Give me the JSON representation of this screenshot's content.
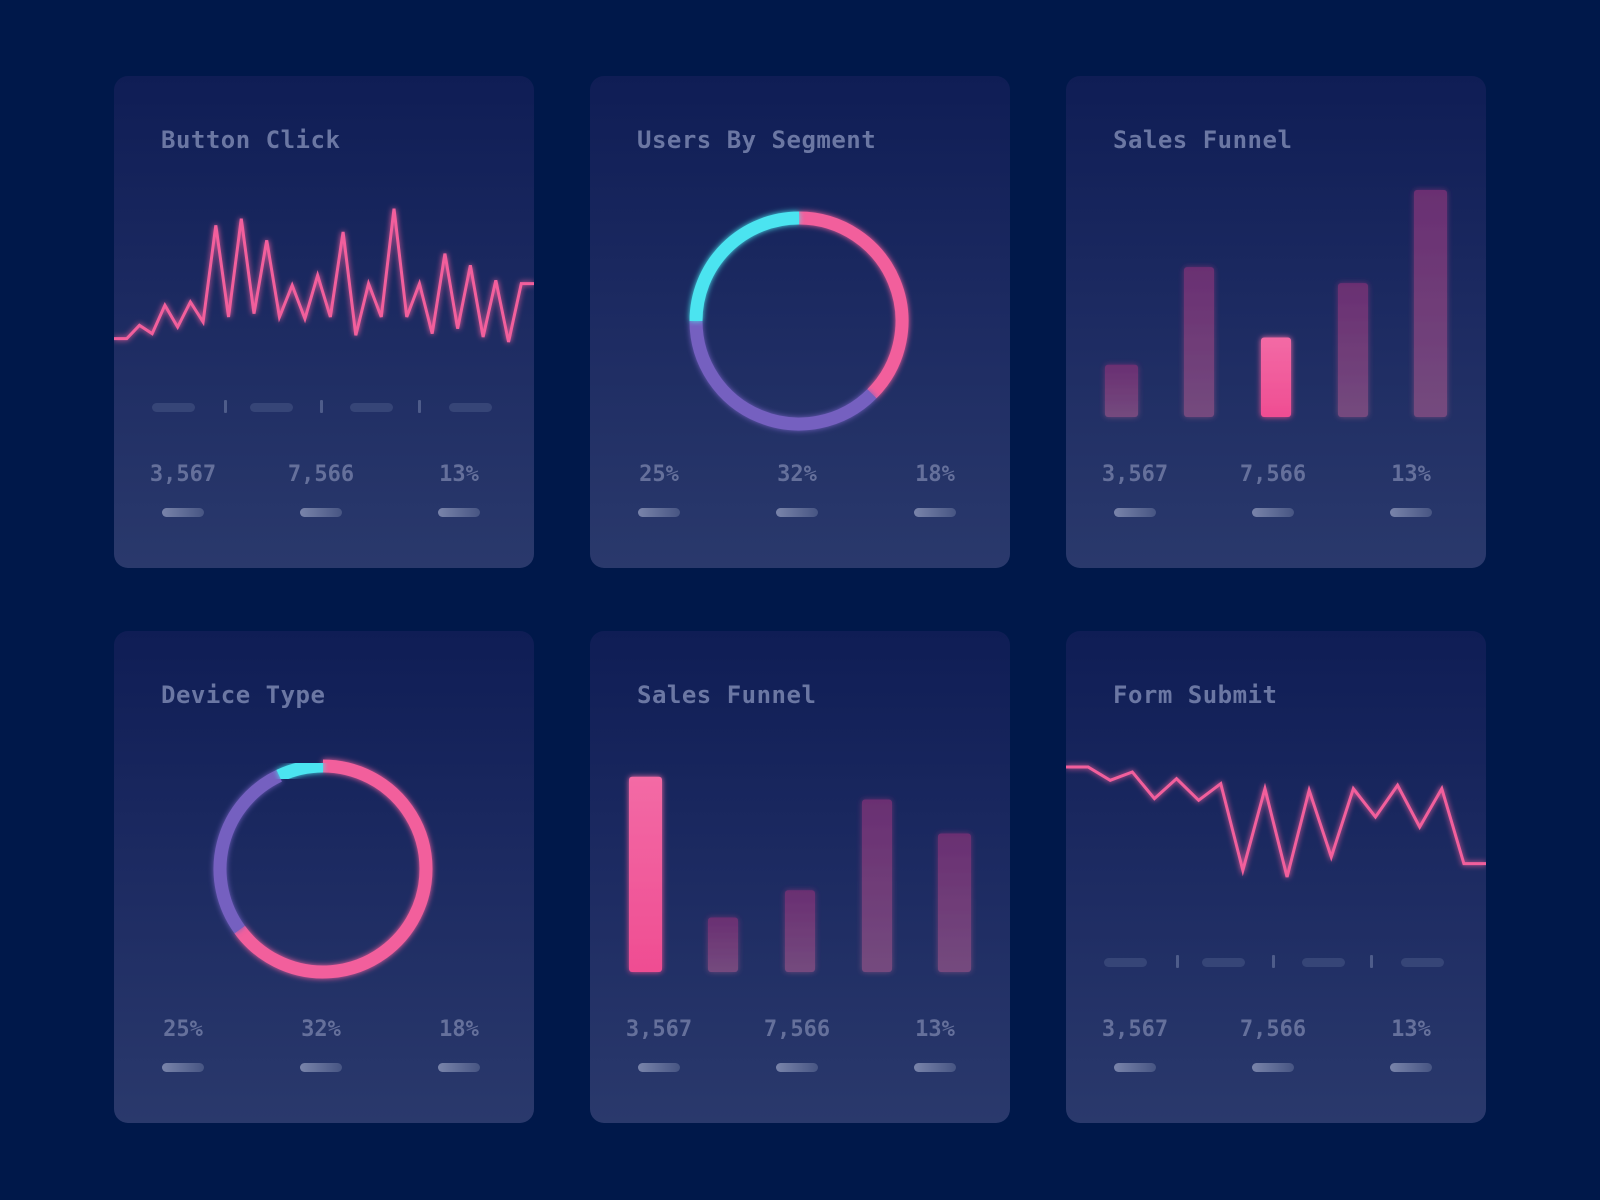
{
  "colors": {
    "background": "#00184a",
    "accent_pink": "#f25f9c",
    "bar_muted": "#6c3a78",
    "cyan": "#4ce4f0",
    "purple": "#7560c0",
    "text": "#6b77a3"
  },
  "cards": [
    {
      "title": "Button Click",
      "stats": [
        "3,567",
        "7,566",
        "13%"
      ]
    },
    {
      "title": "Users By Segment",
      "stats": [
        "25%",
        "32%",
        "18%"
      ]
    },
    {
      "title": "Sales Funnel",
      "stats": [
        "3,567",
        "7,566",
        "13%"
      ]
    },
    {
      "title": "Device Type",
      "stats": [
        "25%",
        "32%",
        "18%"
      ]
    },
    {
      "title": "Sales Funnel",
      "stats": [
        "3,567",
        "7,566",
        "13%"
      ]
    },
    {
      "title": "Form Submit",
      "stats": [
        "3,567",
        "7,566",
        "13%"
      ]
    }
  ],
  "chart_data": [
    {
      "type": "line",
      "card": 0,
      "values": [
        14,
        14,
        22,
        17,
        34,
        21,
        36,
        24,
        82,
        27,
        86,
        29,
        73,
        27,
        46,
        26,
        52,
        27,
        78,
        16,
        47,
        27,
        92,
        27,
        47,
        17,
        65,
        20,
        58,
        15,
        49,
        12,
        47,
        47
      ]
    },
    {
      "type": "pie",
      "variant": "donut",
      "card": 1,
      "slices": [
        {
          "share": 37.5,
          "color": "#f25f9c"
        },
        {
          "share": 37.5,
          "color": "#7560c0"
        },
        {
          "share": 25,
          "color": "#4ce4f0"
        }
      ]
    },
    {
      "type": "bar",
      "card": 2,
      "values": [
        23,
        66,
        35,
        59,
        100
      ],
      "highlighted_index": 2
    },
    {
      "type": "pie",
      "variant": "donut",
      "card": 3,
      "slices": [
        {
          "share": 65,
          "color": "#f25f9c"
        },
        {
          "share": 28,
          "color": "#7560c0"
        },
        {
          "share": 7,
          "color": "#4ce4f0"
        }
      ]
    },
    {
      "type": "bar",
      "card": 4,
      "values": [
        86,
        24,
        36,
        76,
        61
      ],
      "highlighted_index": 0
    },
    {
      "type": "line",
      "card": 5,
      "values": [
        90,
        90,
        82,
        87,
        71,
        83,
        70,
        80,
        28,
        77,
        24,
        76,
        36,
        77,
        60,
        79,
        54,
        77,
        32,
        32
      ]
    }
  ]
}
